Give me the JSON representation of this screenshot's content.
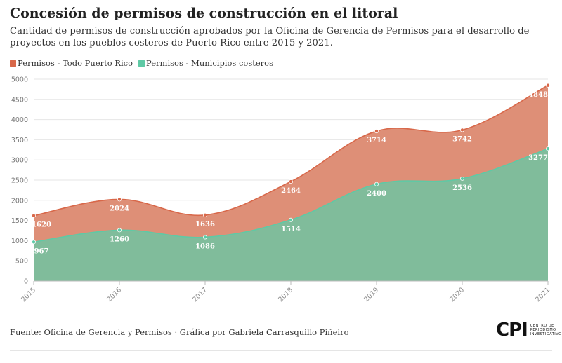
{
  "title": "Concesión de permisos de construcción en el litoral",
  "subtitle": "Cantidad de permisos de construcción aprobados por la Oficina de Gerencia de Permisos para el desarrollo de proyectos en los pueblos costeros de Puerto Rico entre 2015 y 2021.",
  "footer": {
    "source": "Fuente: Oficina de Gerencia y Permisos · Gráfica por Gabriela Carrasquillo Piñeiro",
    "logo_mark": "CPI",
    "logo_text": [
      "CENTRO DE",
      "PERIODISMO",
      "INVESTIGATIVO"
    ]
  },
  "chart_data": {
    "type": "area",
    "x": [
      "2015",
      "2016",
      "2017",
      "2018",
      "2019",
      "2020",
      "2021"
    ],
    "ylim": [
      0,
      5000
    ],
    "yticks": [
      "0",
      "500",
      "1000",
      "1500",
      "2000",
      "2500",
      "3000",
      "3500",
      "4000",
      "4500",
      "5000"
    ],
    "grid": true,
    "legend_position": "top-left",
    "series": [
      {
        "name": "Permisos - Todo Puerto Rico",
        "color": "#d8684a",
        "values": [
          1620,
          2024,
          1636,
          2464,
          3714,
          3742,
          4848
        ]
      },
      {
        "name": "Permisos - Municipios costeros",
        "color": "#5fc9a5",
        "values": [
          967,
          1260,
          1086,
          1514,
          2400,
          2536,
          3277
        ]
      }
    ]
  }
}
